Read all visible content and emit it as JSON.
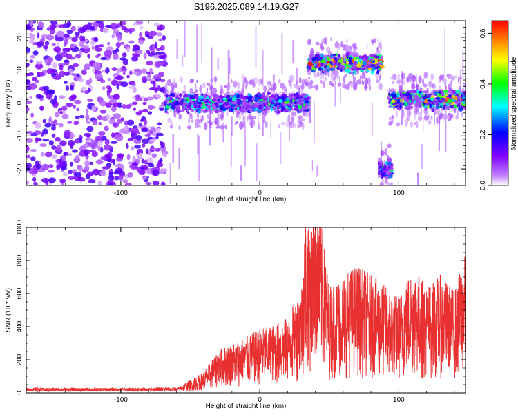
{
  "title": "S196.2025.089.14.19.G27",
  "spectrogram": {
    "xlabel": "Height of straight line (km)",
    "ylabel": "Frequency (Hz)",
    "xlim": [
      -168,
      148
    ],
    "ylim": [
      -25,
      25
    ],
    "xticks": [
      {
        "v": -100,
        "label": "-100"
      },
      {
        "v": 0,
        "label": "0"
      },
      {
        "v": 100,
        "label": "100"
      }
    ],
    "yticks": [
      {
        "v": 20,
        "label": "20"
      },
      {
        "v": 10,
        "label": "10"
      },
      {
        "v": 0,
        "label": "0"
      },
      {
        "v": -10,
        "label": "-10"
      },
      {
        "v": -20,
        "label": "-20"
      }
    ],
    "colorbar": {
      "label": "Normalized spectral amplitude",
      "range": [
        0.0,
        0.65
      ],
      "ticks": [
        {
          "v": 0.0,
          "label": "0.0"
        },
        {
          "v": 0.2,
          "label": "0.2"
        },
        {
          "v": 0.4,
          "label": "0.4"
        },
        {
          "v": 0.6,
          "label": "0.6"
        }
      ],
      "colors": [
        "#ffffff",
        "#8000ff",
        "#0000ff",
        "#00ffff",
        "#00ff00",
        "#ffff00",
        "#ff8000",
        "#ff0000"
      ]
    }
  },
  "chart_data": [
    {
      "type": "heatmap",
      "title": "S196.2025.089.14.19.G27",
      "xlabel": "Height of straight line (km)",
      "ylabel": "Frequency (Hz)",
      "xlim": [
        -168,
        148
      ],
      "ylim": [
        -25,
        25
      ],
      "colorbar_label": "Normalized spectral amplitude",
      "colorbar_range": [
        0.0,
        0.65
      ],
      "segments": [
        {
          "x_start": -168,
          "x_end": -68,
          "freq_center": 0,
          "freq_halfwidth": 25,
          "peak_amplitude": 0.15,
          "kind": "noise"
        },
        {
          "x_start": -68,
          "x_end": 35,
          "freq_center": 0,
          "freq_halfwidth": 3,
          "peak_amplitude": 0.4,
          "kind": "trace"
        },
        {
          "x_start": 35,
          "x_end": 88,
          "freq_center": 12,
          "freq_halfwidth": 3,
          "peak_amplitude": 0.65,
          "kind": "trace"
        },
        {
          "x_start": 86,
          "x_end": 95,
          "freq_center": -20,
          "freq_halfwidth": 3,
          "peak_amplitude": 0.35,
          "kind": "trace"
        },
        {
          "x_start": 93,
          "x_end": 148,
          "freq_center": 1,
          "freq_halfwidth": 3,
          "peak_amplitude": 0.6,
          "kind": "trace"
        }
      ],
      "grid": false
    },
    {
      "type": "line",
      "xlabel": "Height of straight line (km)",
      "ylabel": "SNR (10 * v/v)",
      "xlim": [
        -168,
        148
      ],
      "ylim": [
        0,
        1000
      ],
      "xticks": [
        {
          "v": -100,
          "label": "-100"
        },
        {
          "v": 0,
          "label": "0"
        },
        {
          "v": 100,
          "label": "100"
        }
      ],
      "yticks": [
        {
          "v": 0,
          "label": "0"
        },
        {
          "v": 200,
          "label": "200"
        },
        {
          "v": 400,
          "label": "400"
        },
        {
          "v": 600,
          "label": "600"
        },
        {
          "v": 800,
          "label": "800"
        },
        {
          "v": 1000,
          "label": "1000"
        }
      ],
      "color": "#e83030",
      "series": [
        {
          "x": [
            -168,
            -100,
            -60,
            -50,
            -40,
            -30,
            -20,
            -10,
            0,
            10,
            20,
            30,
            33,
            38,
            40,
            50,
            60,
            70,
            80,
            90,
            100,
            110,
            120,
            130,
            140,
            148
          ],
          "y": [
            20,
            20,
            22,
            60,
            100,
            200,
            230,
            260,
            300,
            320,
            350,
            500,
            860,
            800,
            1000,
            500,
            550,
            600,
            550,
            500,
            450,
            600,
            500,
            550,
            480,
            650
          ]
        }
      ],
      "grid": false
    }
  ]
}
